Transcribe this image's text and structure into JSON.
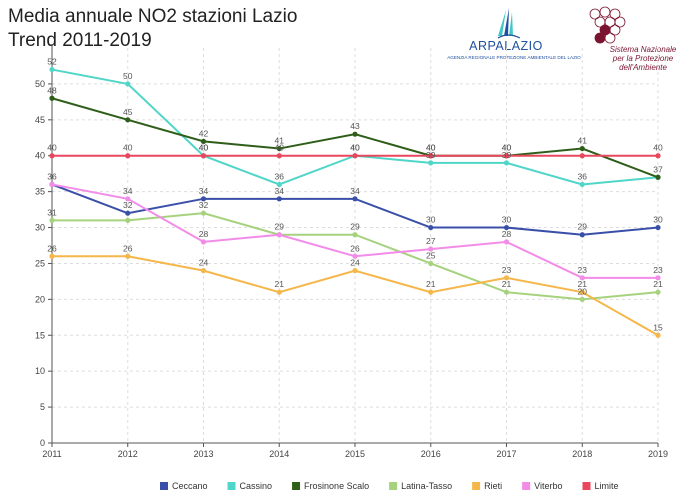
{
  "title": {
    "line1": "Media annuale NO2 stazioni Lazio",
    "line2": "Trend 2011-2019"
  },
  "logos": {
    "arpa_name": "ARPALAZIO",
    "arpa_sub": "AGENZIA REGIONALE PROTEZIONE AMBIENTALE DEL LAZIO",
    "snpa_line1": "Sistema Nazionale",
    "snpa_line2": "per la Protezione",
    "snpa_line3": "dell'Ambiente",
    "arpa_color": "#1f4fa0",
    "arpa_accent": "#40c8c8",
    "snpa_color": "#7a1430"
  },
  "chart_data": {
    "type": "line",
    "x": [
      2011,
      2012,
      2013,
      2014,
      2015,
      2016,
      2017,
      2018,
      2019
    ],
    "ylim": [
      0,
      55
    ],
    "yticks": [
      0,
      5,
      10,
      15,
      20,
      25,
      30,
      35,
      40,
      45,
      50
    ],
    "grid": true,
    "legend_position": "bottom",
    "series": [
      {
        "name": "Ceccano",
        "color": "#3a4fa8",
        "values": [
          36,
          32,
          34,
          34,
          34,
          30,
          30,
          29,
          30
        ],
        "labels": [
          36,
          32,
          34,
          34,
          34,
          30,
          30,
          29,
          30
        ]
      },
      {
        "name": "Cassino",
        "color": "#4fd6c8",
        "values": [
          52,
          50,
          40,
          36,
          40,
          39,
          39,
          36,
          37
        ],
        "labels": [
          52,
          50,
          40,
          36,
          40,
          39,
          39,
          36,
          null
        ]
      },
      {
        "name": "Frosinone Scalo",
        "color": "#2e5e1a",
        "values": [
          48,
          45,
          42,
          41,
          43,
          40,
          40,
          41,
          37
        ],
        "labels": [
          48,
          45,
          42,
          41,
          43,
          40,
          40,
          41,
          37
        ]
      },
      {
        "name": "Latina-Tasso",
        "color": "#a6d27e",
        "values": [
          31,
          31,
          32,
          29,
          29,
          25,
          21,
          20,
          21
        ],
        "labels": [
          31,
          null,
          32,
          null,
          29,
          25,
          21,
          20,
          21
        ]
      },
      {
        "name": "Rieti",
        "color": "#f5b64a",
        "values": [
          26,
          26,
          24,
          21,
          24,
          21,
          23,
          21,
          15
        ],
        "labels": [
          26,
          26,
          24,
          21,
          24,
          21,
          23,
          21,
          15
        ]
      },
      {
        "name": "Viterbo",
        "color": "#f28ce8",
        "values": [
          36,
          34,
          28,
          29,
          26,
          27,
          28,
          23,
          23
        ],
        "labels": [
          null,
          34,
          28,
          29,
          26,
          27,
          28,
          23,
          23
        ]
      },
      {
        "name": "Limite",
        "color": "#e8475e",
        "values": [
          40,
          40,
          40,
          40,
          40,
          40,
          40,
          40,
          40
        ],
        "labels": [
          40,
          40,
          40,
          40,
          40,
          40,
          40,
          null,
          40
        ]
      }
    ]
  }
}
